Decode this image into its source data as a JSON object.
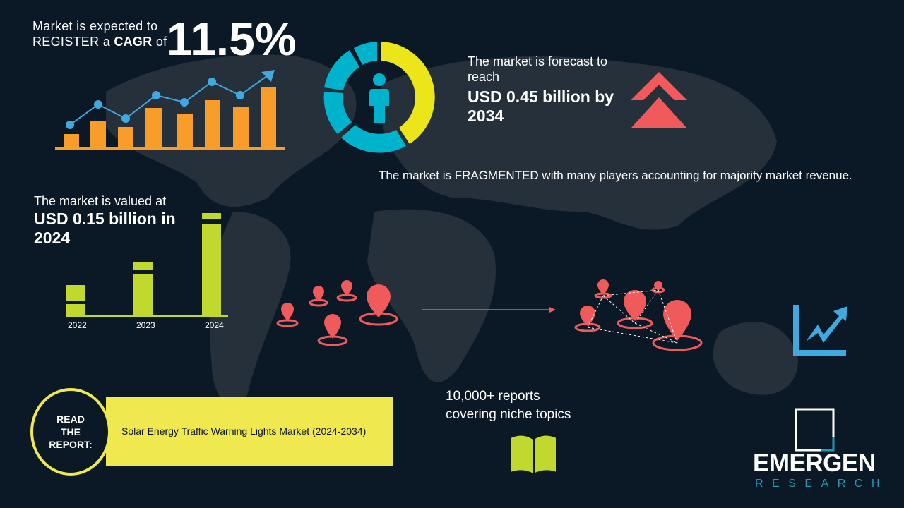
{
  "cagr": {
    "line1": "Market is expected to",
    "line2_pre": "REGISTER a ",
    "line2_bold": "CAGR",
    "line2_post": " of",
    "value": "11.5%"
  },
  "forecast": {
    "intro": "The market is forecast to reach",
    "value": "USD 0.45 billion by 2034"
  },
  "fragmented": {
    "text": "The market is FRAGMENTED with many players accounting for majority market revenue."
  },
  "valued": {
    "intro": "The market is valued at",
    "value": "USD 0.15 billion in 2024"
  },
  "year_bars": {
    "labels": [
      "2022",
      "2023",
      "2024"
    ]
  },
  "reports": {
    "line1": "10,000+ reports",
    "line2": "covering niche topics"
  },
  "read_report": {
    "badge": "READ THE REPORT:",
    "title": "Solar Energy Traffic Warning Lights Market (2024-2034)"
  },
  "logo": {
    "name": "EMERGEN",
    "sub": "RESEARCH"
  },
  "icons": [
    "growth-chart-icon",
    "donut-person-icon",
    "double-chevron-up-icon",
    "map-pin-icon",
    "trend-chart-icon",
    "open-book-icon"
  ],
  "colors": {
    "background": "#0b1826",
    "orange": "#f99d2a",
    "blue": "#3fa9e0",
    "cyan": "#00b3cc",
    "yellow": "#ebe51a",
    "red": "#f05a5a",
    "green": "#c1d82f",
    "banner": "#efe84e"
  }
}
